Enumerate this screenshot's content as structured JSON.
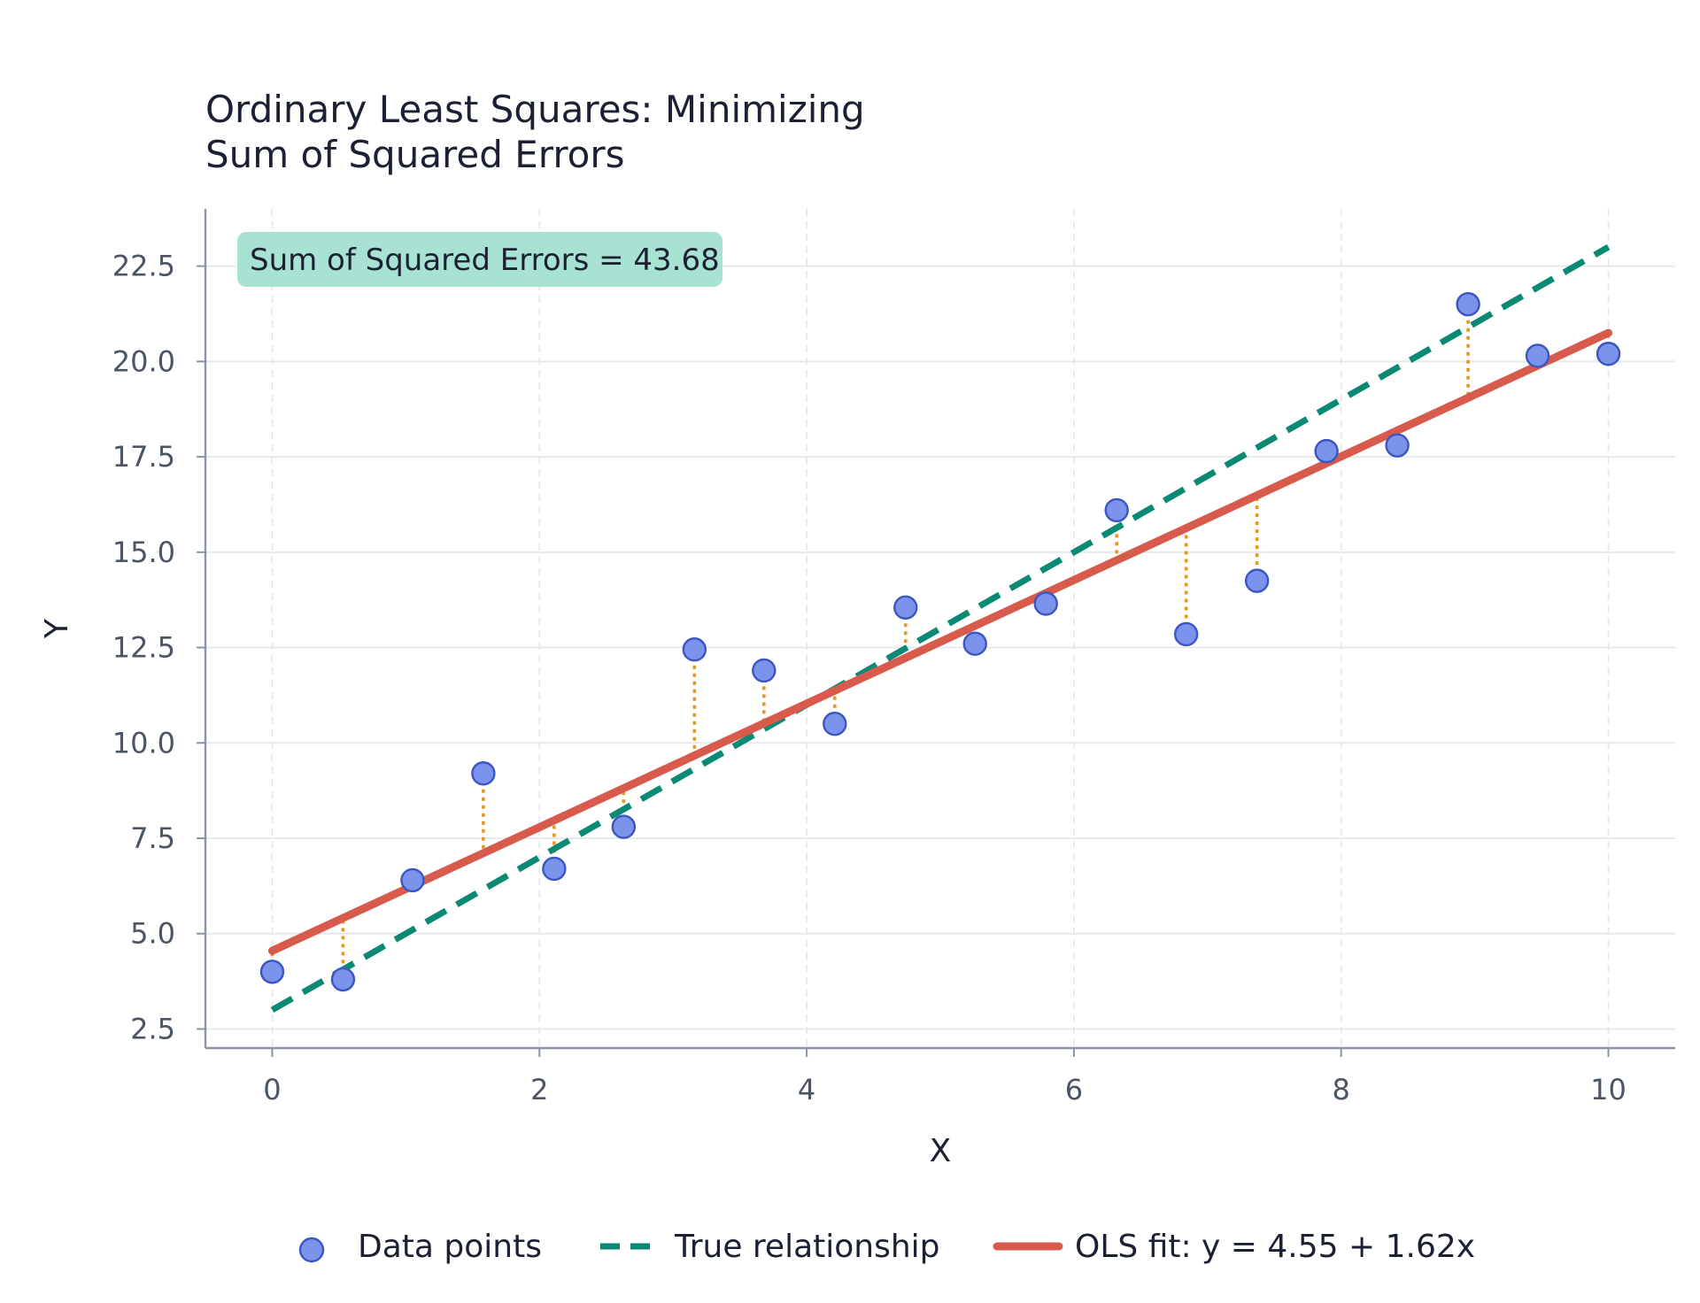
{
  "chart_data": {
    "type": "scatter",
    "title_lines": [
      "Ordinary Least Squares: Minimizing",
      "Sum of Squared Errors"
    ],
    "xlabel": "X",
    "ylabel": "Y",
    "xlim": [
      -0.5,
      10.5
    ],
    "ylim": [
      2,
      24
    ],
    "x_ticks": [
      0,
      2,
      4,
      6,
      8,
      10
    ],
    "x_tick_labels": [
      "0",
      "2",
      "4",
      "6",
      "8",
      "10"
    ],
    "y_ticks": [
      2.5,
      5.0,
      7.5,
      10.0,
      12.5,
      15.0,
      17.5,
      20.0,
      22.5
    ],
    "y_tick_labels": [
      "2.5",
      "5.0",
      "7.5",
      "10.0",
      "12.5",
      "15.0",
      "17.5",
      "20.0",
      "22.5"
    ],
    "grid": true,
    "annotation": "Sum of Squared Errors = 43.68",
    "legend_position": "bottom",
    "points": {
      "name": "Data points",
      "color": "#7b93ea",
      "edge_color": "#3b55c2",
      "x": [
        0.0,
        0.53,
        1.05,
        1.58,
        2.11,
        2.63,
        3.16,
        3.68,
        4.21,
        4.74,
        5.26,
        5.79,
        6.32,
        6.84,
        7.37,
        7.89,
        8.42,
        8.95,
        9.47,
        10.0
      ],
      "y": [
        4.0,
        3.8,
        6.4,
        9.2,
        6.7,
        7.8,
        12.45,
        11.9,
        10.5,
        13.55,
        12.6,
        13.65,
        16.1,
        12.85,
        14.25,
        17.65,
        17.8,
        21.5,
        20.15,
        20.2
      ]
    },
    "true_line": {
      "name": "True relationship",
      "color": "#0a8a74",
      "intercept": 3.0,
      "slope": 2.0,
      "x_range": [
        0,
        10
      ]
    },
    "ols_line": {
      "name": "OLS fit: y = 4.55 + 1.62x",
      "color": "#d85a4c",
      "intercept": 4.55,
      "slope": 1.62,
      "x_range": [
        0,
        10
      ]
    },
    "residual_color": "#e8961e",
    "annotation_bg": "#a8e2d3"
  }
}
